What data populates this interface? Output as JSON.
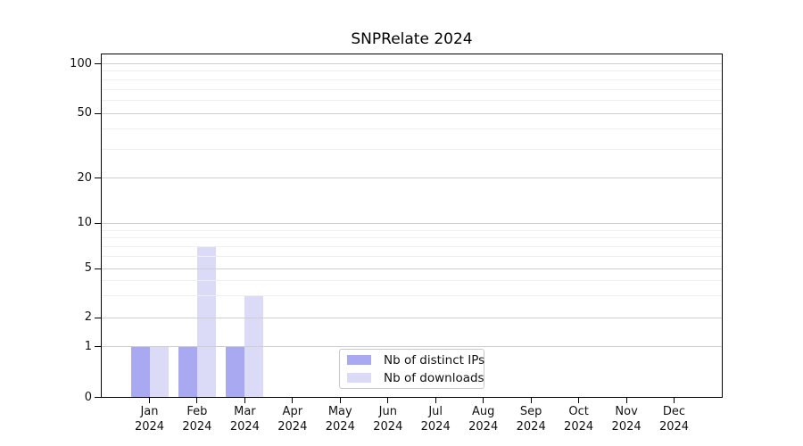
{
  "chart_data": {
    "type": "bar",
    "title": "SNPRelate 2024",
    "categories": [
      "Jan 2024",
      "Feb 2024",
      "Mar 2024",
      "Apr 2024",
      "May 2024",
      "Jun 2024",
      "Jul 2024",
      "Aug 2024",
      "Sep 2024",
      "Oct 2024",
      "Nov 2024",
      "Dec 2024"
    ],
    "series": [
      {
        "name": "Nb of distinct IPs",
        "color": "#a9a9f2",
        "values": [
          1,
          1,
          1,
          0,
          0,
          0,
          0,
          0,
          0,
          0,
          0,
          0
        ]
      },
      {
        "name": "Nb of downloads",
        "color": "#dbdbf8",
        "values": [
          1,
          7,
          3,
          0,
          0,
          0,
          0,
          0,
          0,
          0,
          0,
          0
        ]
      }
    ],
    "yticks": [
      0,
      1,
      2,
      5,
      10,
      20,
      50,
      100
    ],
    "minor_yticks": [
      3,
      4,
      6,
      7,
      8,
      9,
      30,
      40,
      60,
      70,
      80,
      90
    ],
    "ylim": [
      0,
      112
    ],
    "yscale": "log-like",
    "grid": "horizontal",
    "legend_position": "inside-bottom-center",
    "colors": {
      "spine": "#000000",
      "major_grid": "#cfcfcf",
      "minor_grid": "#efefef",
      "text": "#111111"
    }
  }
}
